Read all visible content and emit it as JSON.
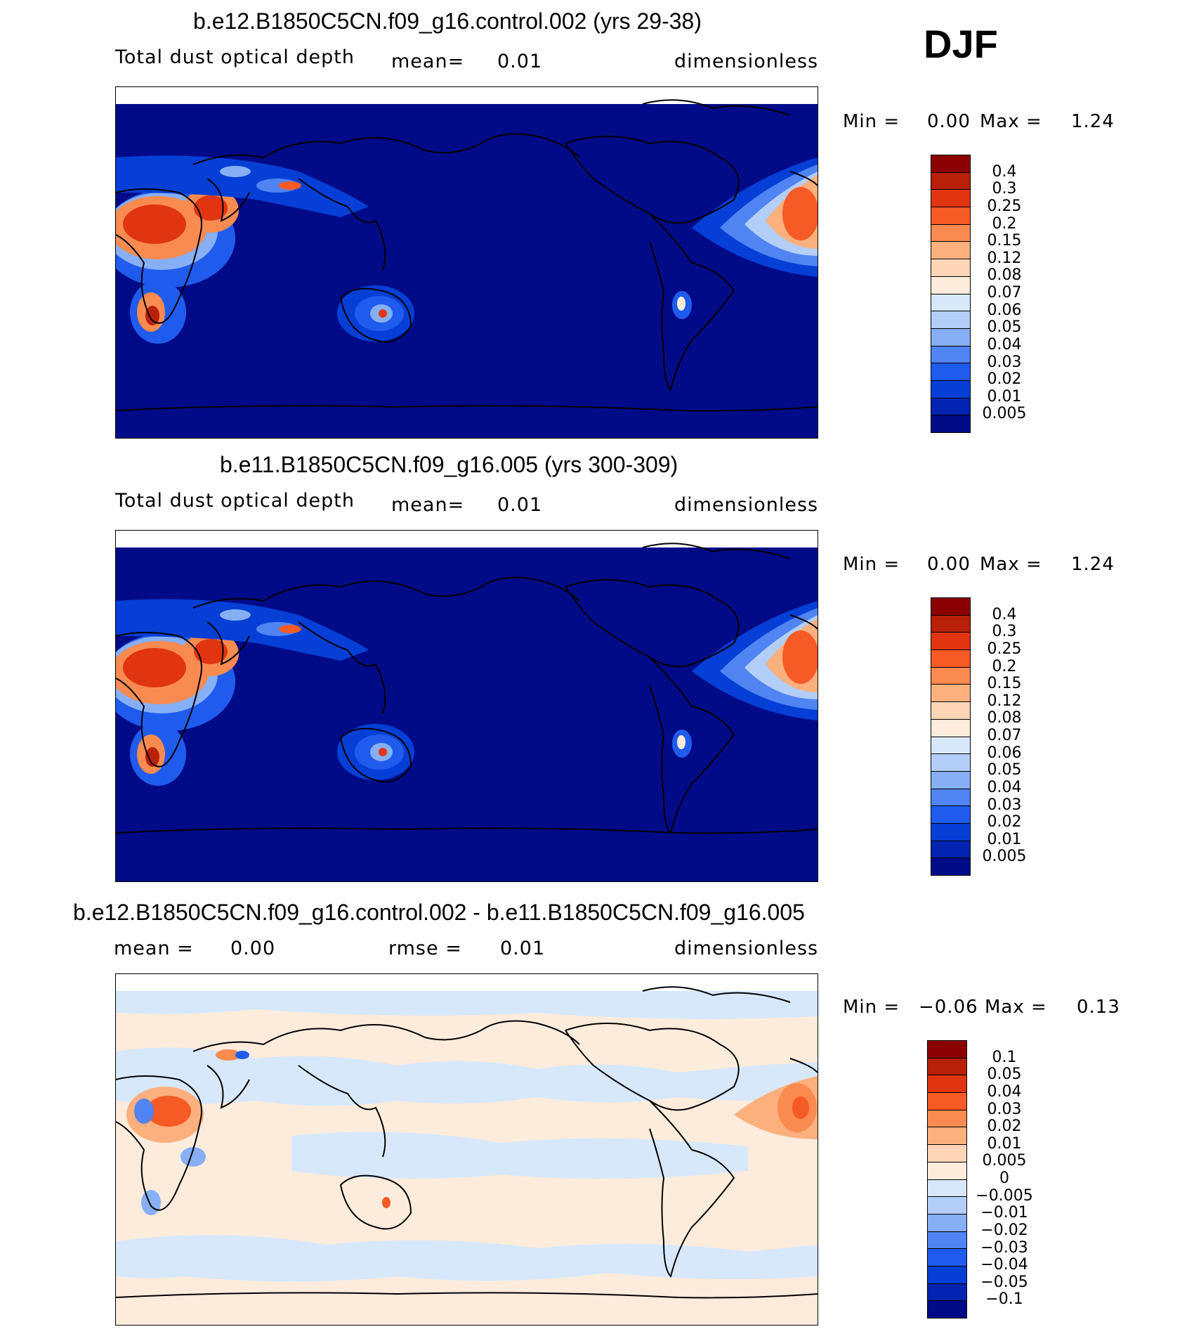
{
  "season": "DJF",
  "panels": [
    {
      "title": "b.e12.B1850C5CN.f09_g16.control.002 (yrs 29-38)",
      "variable": "Total dust optical depth",
      "stat1_label": "mean=",
      "stat1_value": "0.01",
      "units": "dimensionless",
      "min_label": "Min =",
      "min_value": "0.00",
      "max_label": "Max =",
      "max_value": "1.24"
    },
    {
      "title": "b.e11.B1850C5CN.f09_g16.005 (yrs 300-309)",
      "variable": "Total dust optical depth",
      "stat1_label": "mean=",
      "stat1_value": "0.01",
      "units": "dimensionless",
      "min_label": "Min =",
      "min_value": "0.00",
      "max_label": "Max =",
      "max_value": "1.24"
    },
    {
      "title": "b.e12.B1850C5CN.f09_g16.control.002 - b.e11.B1850C5CN.f09_g16.005",
      "stat1_label": "mean =",
      "stat1_value": "0.00",
      "stat2_label": "rmse =",
      "stat2_value": "0.01",
      "units": "dimensionless",
      "min_label": "Min =",
      "min_value": "−0.06",
      "max_label": "Max =",
      "max_value": "0.13"
    }
  ],
  "colorbars": {
    "field": {
      "labels": [
        "0.4",
        "0.3",
        "0.25",
        "0.2",
        "0.15",
        "0.12",
        "0.08",
        "0.07",
        "0.06",
        "0.05",
        "0.04",
        "0.03",
        "0.02",
        "0.01",
        "0.005"
      ],
      "colors": [
        "#8b0000",
        "#b8200a",
        "#e03510",
        "#f65a25",
        "#f98a50",
        "#fbb07e",
        "#fdd6b8",
        "#fdecdc",
        "#d7e8fb",
        "#b3cef8",
        "#86aff5",
        "#4f84f2",
        "#1f5ced",
        "#063fd6",
        "#0224b0",
        "#010b88"
      ]
    },
    "diff": {
      "labels": [
        "0.1",
        "0.05",
        "0.04",
        "0.03",
        "0.02",
        "0.01",
        "0.005",
        "0",
        "−0.005",
        "−0.01",
        "−0.02",
        "−0.03",
        "−0.04",
        "−0.05",
        "−0.1"
      ],
      "colors": [
        "#8b0000",
        "#b8200a",
        "#e03510",
        "#f65a25",
        "#f98a50",
        "#fbb07e",
        "#fdd6b8",
        "#fdecdc",
        "#d7e8fb",
        "#b3cef8",
        "#86aff5",
        "#4f84f2",
        "#1f5ced",
        "#063fd6",
        "#0224b0",
        "#010b88"
      ]
    }
  }
}
